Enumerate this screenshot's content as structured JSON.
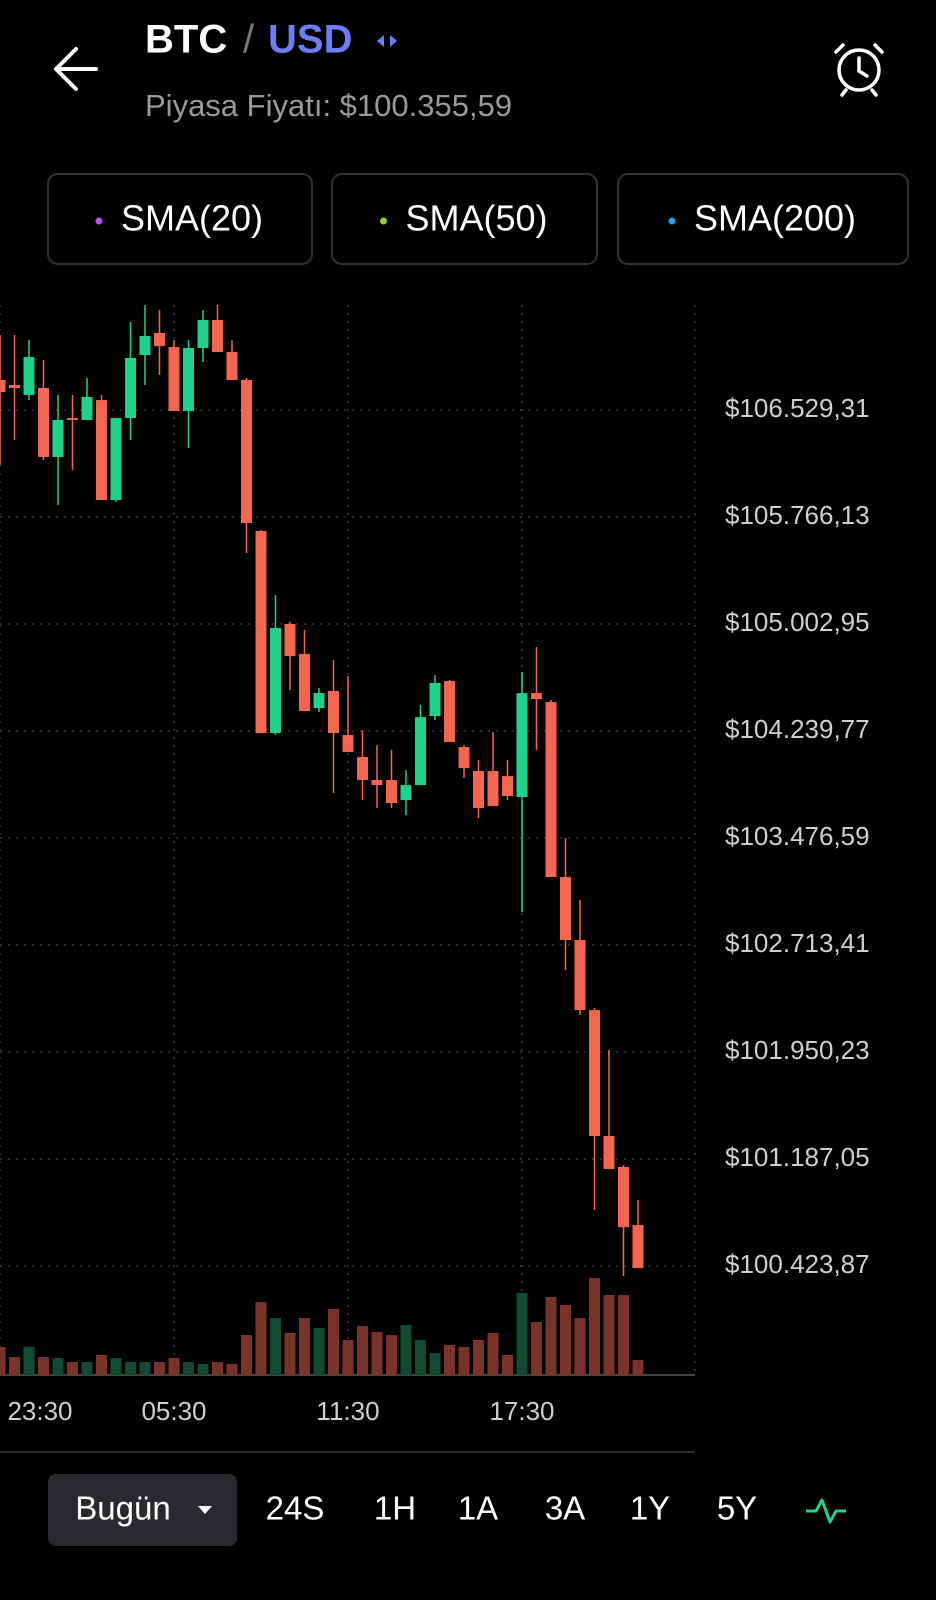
{
  "header": {
    "base": "BTC",
    "separator": "/",
    "quote": "USD",
    "subtitle": "Piyasa Fiyatı: $100.355,59"
  },
  "indicators": [
    {
      "label": "SMA(20)",
      "color": "#c04ef0"
    },
    {
      "label": "SMA(50)",
      "color": "#9acd32"
    },
    {
      "label": "SMA(200)",
      "color": "#1ea7f5"
    }
  ],
  "ranges": [
    "Bugün",
    "24S",
    "1H",
    "1A",
    "3A",
    "1Y",
    "5Y"
  ],
  "chart_data": {
    "type": "candlestick",
    "up_color": "#1fd18a",
    "down_color": "#f4664f",
    "up_volume_color": "#124a33",
    "down_volume_color": "#7a3328",
    "grid": true,
    "categories": [
      "23:30",
      null,
      null,
      null,
      null,
      null,
      null,
      null,
      null,
      null,
      null,
      null,
      "05:30",
      null,
      null,
      null,
      null,
      null,
      null,
      null,
      null,
      null,
      null,
      null,
      "11:30",
      null,
      null,
      null,
      null,
      null,
      null,
      null,
      null,
      null,
      null,
      null,
      "17:30",
      null,
      null,
      null,
      null,
      null,
      null,
      null,
      null
    ],
    "open": [
      106743,
      106707,
      106636,
      106686,
      106194,
      106472,
      106458,
      106600,
      105887,
      106472,
      106921,
      107078,
      106978,
      106522,
      106971,
      107171,
      106943,
      106743,
      105666,
      104225,
      105003,
      104789,
      104403,
      104525,
      104211,
      104054,
      103890,
      103890,
      103747,
      103854,
      104346,
      104596,
      104125,
      103954,
      103954,
      103918,
      103769,
      104510,
      104446,
      103198,
      102749,
      102249,
      101351,
      101130,
      100716
    ],
    "high": [
      107064,
      107064,
      107028,
      106886,
      106636,
      106636,
      106757,
      106636,
      106472,
      107157,
      107278,
      107242,
      107028,
      107028,
      107242,
      107278,
      107028,
      106757,
      105673,
      105209,
      105017,
      104960,
      104546,
      104746,
      104632,
      104246,
      104139,
      104104,
      103961,
      104425,
      104639,
      104603,
      104139,
      104032,
      104232,
      104032,
      104660,
      104839,
      104460,
      103476,
      103034,
      102264,
      101964,
      101144,
      100894
    ],
    "low": [
      106137,
      106315,
      106600,
      106172,
      105851,
      106101,
      106458,
      105887,
      105873,
      106315,
      106707,
      106779,
      106522,
      106258,
      106871,
      106943,
      106743,
      105509,
      104225,
      104211,
      104532,
      104382,
      104375,
      103797,
      104090,
      103747,
      103690,
      103690,
      103640,
      103854,
      104318,
      104161,
      103904,
      103619,
      103704,
      103747,
      102948,
      104104,
      103198,
      102535,
      102214,
      100823,
      101115,
      100352,
      100409
    ],
    "close": [
      106657,
      106686,
      106907,
      106194,
      106458,
      106458,
      106622,
      105887,
      106472,
      106900,
      107057,
      106985,
      106522,
      106971,
      107171,
      106943,
      106743,
      105723,
      104225,
      104974,
      104774,
      104382,
      104510,
      104225,
      104090,
      103890,
      103854,
      103726,
      103854,
      104339,
      104582,
      104161,
      103975,
      103690,
      103704,
      103776,
      104510,
      104468,
      103198,
      102749,
      102249,
      101351,
      101115,
      100701,
      100409
    ],
    "volume": [
      28,
      18,
      28,
      18,
      17,
      13,
      13,
      20,
      17,
      13,
      13,
      13,
      17,
      13,
      11,
      13,
      11,
      40,
      73,
      57,
      42,
      57,
      47,
      66,
      35,
      49,
      43,
      40,
      50,
      35,
      22,
      30,
      28,
      35,
      42,
      20,
      82,
      53,
      78,
      70,
      57,
      97,
      80,
      80,
      15
    ],
    "ylim": [
      100324,
      107278
    ],
    "yticks": [
      {
        "value": 106529.31,
        "label": "$106.529,31"
      },
      {
        "value": 105766.13,
        "label": "$105.766,13"
      },
      {
        "value": 105002.95,
        "label": "$105.002,95"
      },
      {
        "value": 104239.77,
        "label": "$104.239,77"
      },
      {
        "value": 103476.59,
        "label": "$103.476,59"
      },
      {
        "value": 102713.41,
        "label": "$102.713,41"
      },
      {
        "value": 101950.23,
        "label": "$101.950,23"
      },
      {
        "value": 101187.05,
        "label": "$101.187,05"
      },
      {
        "value": 100423.87,
        "label": "$100.423,87"
      }
    ]
  }
}
